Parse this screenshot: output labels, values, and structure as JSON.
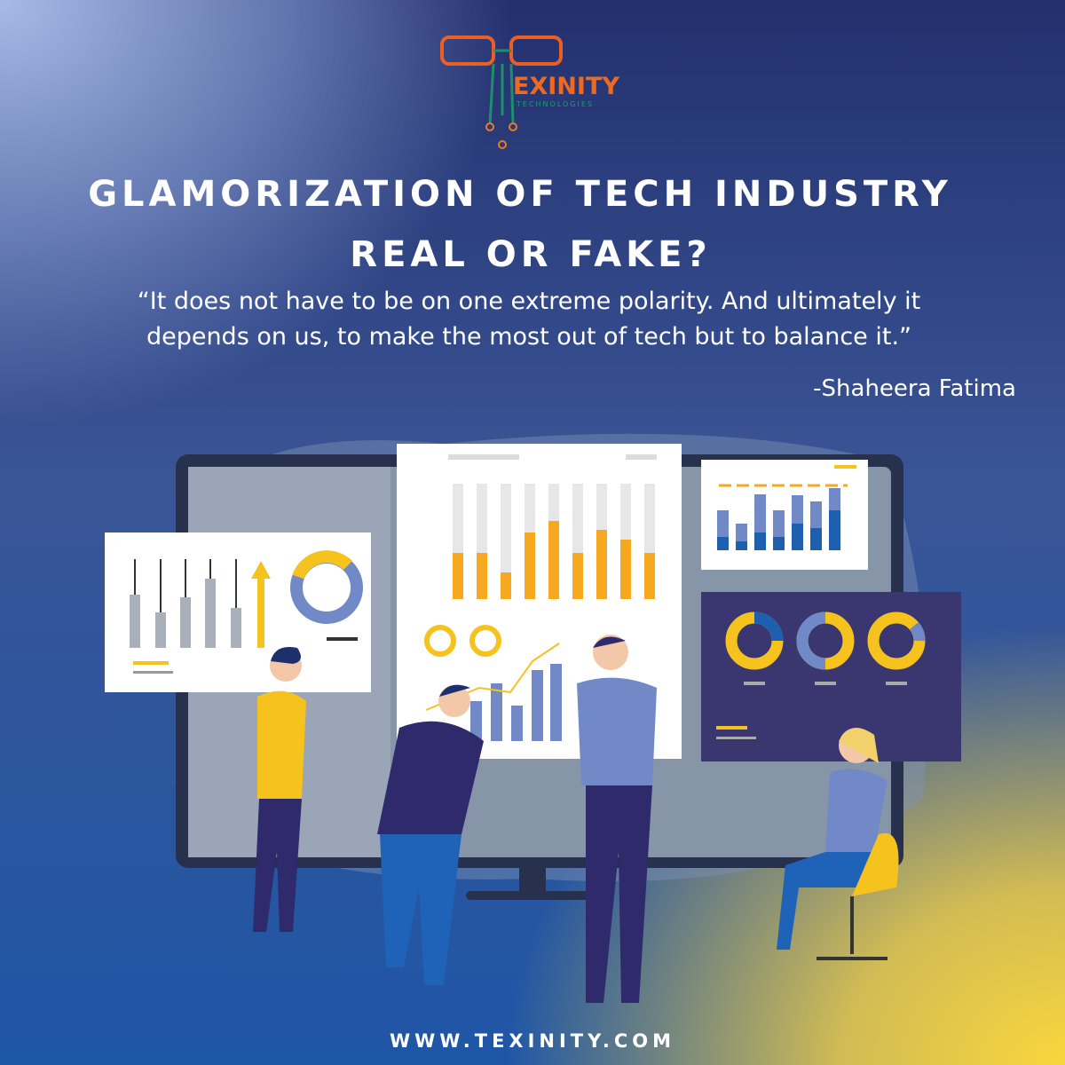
{
  "logo": {
    "name": "EXINITY",
    "tagline": "TECHNOLOGIES"
  },
  "headline": {
    "lines": [
      "GLAMORIZATION OF TECH INDUSTRY",
      "REAL OR FAKE?"
    ]
  },
  "quote": {
    "lines": [
      "“It does not have to be on one extreme polarity. And ultimately it",
      "depends on us, to make the most out of tech but to balance it.”"
    ],
    "author": "-Shaheera Fatima"
  },
  "footer": {
    "url": "WWW.TEXINITY.COM"
  }
}
